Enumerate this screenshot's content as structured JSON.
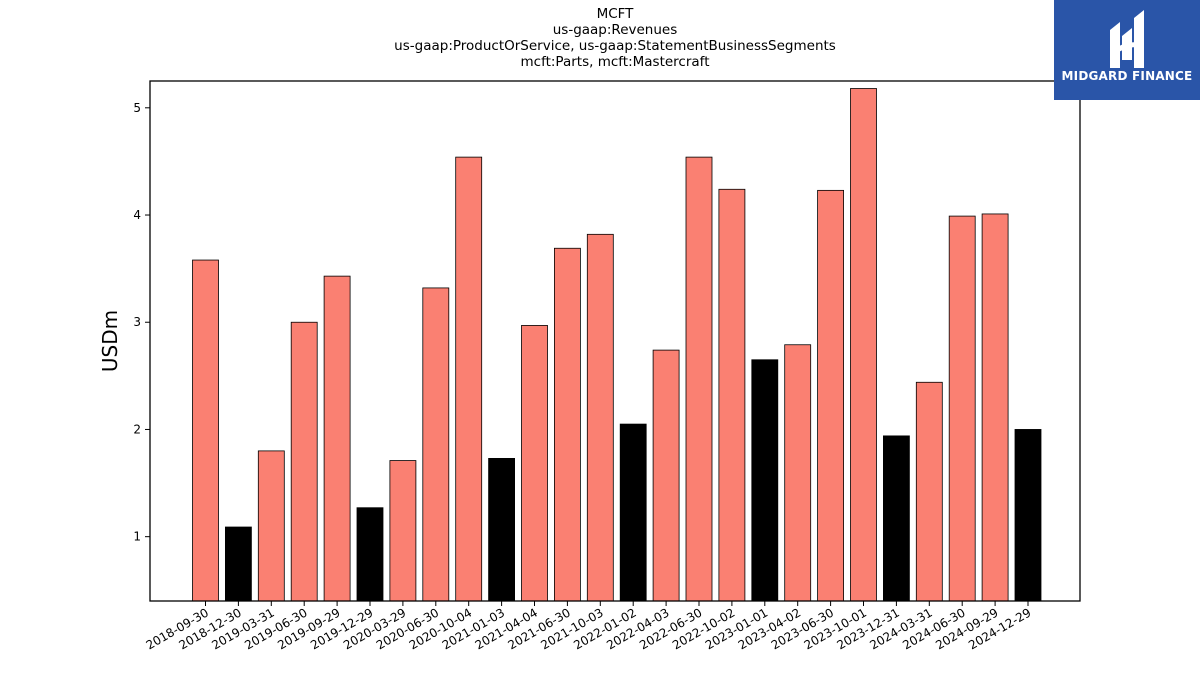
{
  "title_lines": [
    "MCFT",
    "us-gaap:Revenues",
    "us-gaap:ProductOrService, us-gaap:StatementBusinessSegments",
    "mcft:Parts, mcft:Mastercraft"
  ],
  "logo": {
    "text": "MIDGARD FINANCE",
    "color": "#2a55a8"
  },
  "chart_data": {
    "type": "bar",
    "title": "MCFT",
    "ylabel": "USDm",
    "xlabel": "",
    "ylim": [
      0.4,
      5.25
    ],
    "yticks": [
      1,
      2,
      3,
      4,
      5
    ],
    "grid": false,
    "categories": [
      "2018-09-30",
      "2018-12-30",
      "2019-03-31",
      "2019-06-30",
      "2019-09-29",
      "2019-12-29",
      "2020-03-29",
      "2020-06-30",
      "2020-10-04",
      "2021-01-03",
      "2021-04-04",
      "2021-06-30",
      "2021-10-03",
      "2022-01-02",
      "2022-04-03",
      "2022-06-30",
      "2022-10-02",
      "2023-01-01",
      "2023-04-02",
      "2023-06-30",
      "2023-10-01",
      "2023-12-31",
      "2024-03-31",
      "2024-06-30",
      "2024-09-29",
      "2024-12-29"
    ],
    "values": [
      3.58,
      1.09,
      1.8,
      3.0,
      3.43,
      1.27,
      1.71,
      3.32,
      4.54,
      1.73,
      2.97,
      3.69,
      3.82,
      2.05,
      2.74,
      4.54,
      4.24,
      2.65,
      2.79,
      4.23,
      5.18,
      1.94,
      2.44,
      3.99,
      4.01,
      2.0
    ],
    "colors": [
      "salmon",
      "black",
      "salmon",
      "salmon",
      "salmon",
      "black",
      "salmon",
      "salmon",
      "salmon",
      "black",
      "salmon",
      "salmon",
      "salmon",
      "black",
      "salmon",
      "salmon",
      "salmon",
      "black",
      "salmon",
      "salmon",
      "salmon",
      "black",
      "salmon",
      "salmon",
      "salmon",
      "black"
    ],
    "palette": {
      "salmon": "#fa8072",
      "black": "#000000",
      "edge": "#000000"
    }
  }
}
